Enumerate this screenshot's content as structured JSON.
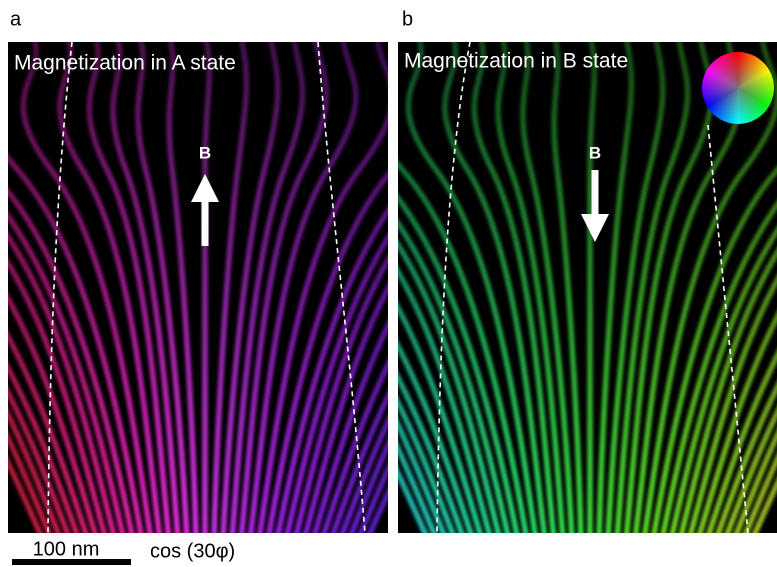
{
  "panels": [
    {
      "label": "a",
      "title": "Magnetization in A state",
      "field_label": "B"
    },
    {
      "label": "b",
      "title": "Magnetization in B state",
      "field_label": "B"
    }
  ],
  "scale_bar": "100 nm",
  "caption": "cos (30φ)"
}
